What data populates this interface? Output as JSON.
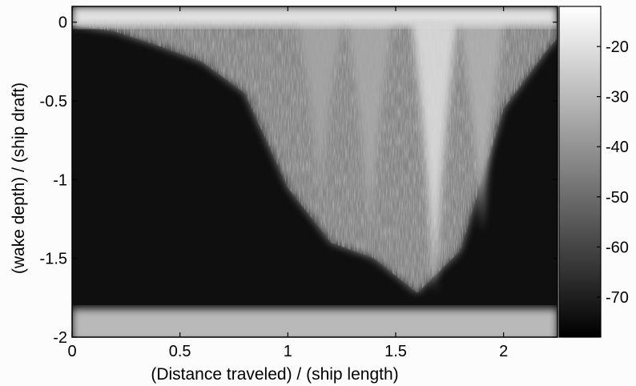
{
  "chart_data": {
    "type": "heatmap",
    "title": "",
    "xlabel": "(Distance traveled) / (ship length)",
    "ylabel": "(wake depth) / (ship draft)",
    "xlim": [
      0,
      2.25
    ],
    "ylim": [
      -2,
      0.1
    ],
    "x_ticks": [
      0,
      0.5,
      1,
      1.5,
      2
    ],
    "x_tick_labels": [
      "0",
      "0.5",
      "1",
      "1.5",
      "2"
    ],
    "y_ticks": [
      0,
      -0.5,
      -1,
      -1.5,
      -2
    ],
    "y_tick_labels": [
      "0",
      "-0.5",
      "-1",
      "-1.5",
      "-2"
    ],
    "colorbar": {
      "colormap": "gray",
      "range": [
        -78,
        -12
      ],
      "ticks": [
        -20,
        -30,
        -40,
        -50,
        -60,
        -70
      ],
      "tick_labels": [
        "-20",
        "-30",
        "-40",
        "-50",
        "-60",
        "-70"
      ]
    },
    "background_level": -74,
    "surface_band": {
      "y_from": 0.1,
      "y_to": 0,
      "level": -20
    },
    "bottom_band": {
      "y_from": -1.85,
      "y_to": -2,
      "level": -30
    },
    "wake_boundary": {
      "x": [
        0.0,
        0.2,
        0.4,
        0.6,
        0.8,
        1.0,
        1.2,
        1.4,
        1.6,
        1.8,
        2.0,
        2.2,
        2.25
      ],
      "depth": [
        -0.02,
        -0.06,
        -0.15,
        -0.25,
        -0.45,
        -1.05,
        -1.4,
        -1.5,
        -1.72,
        -1.45,
        -0.55,
        -0.18,
        -0.1
      ]
    },
    "plumes": [
      {
        "x": 1.68,
        "depth": -1.72,
        "level": -20
      },
      {
        "x": 1.9,
        "depth": -1.32,
        "level": -32
      },
      {
        "x": 1.38,
        "depth": -1.35,
        "level": -34
      },
      {
        "x": 1.15,
        "depth": -1.1,
        "level": -35
      }
    ]
  }
}
